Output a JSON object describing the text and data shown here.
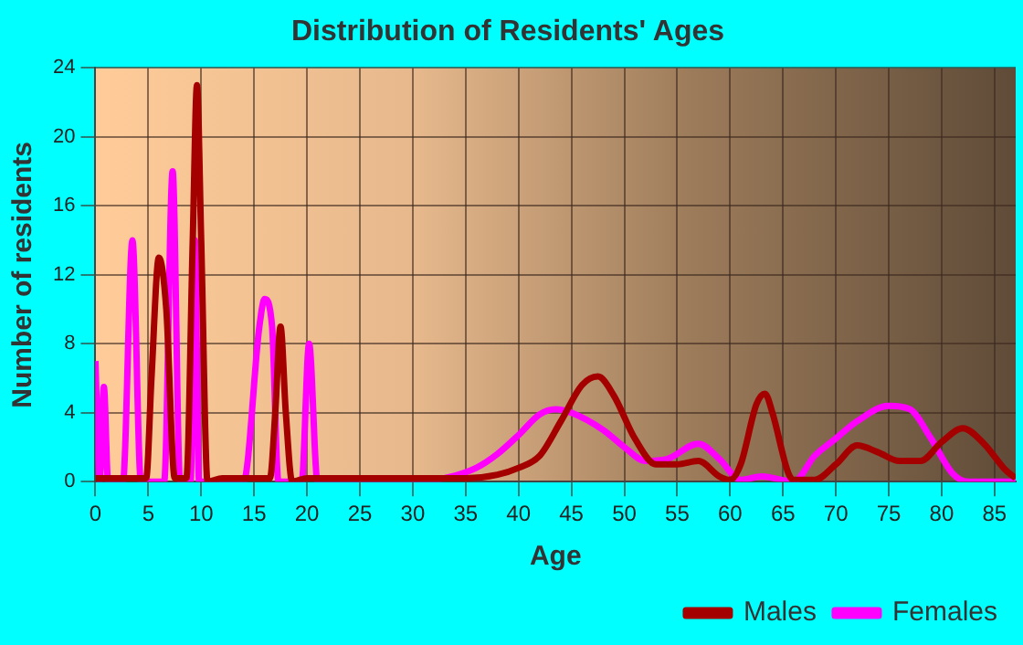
{
  "chart_data": {
    "type": "line",
    "title": "Distribution of Residents' Ages",
    "xlabel": "Age",
    "ylabel": "Number of residents",
    "xlim": [
      0,
      87
    ],
    "xticks": [
      0,
      5,
      10,
      15,
      20,
      25,
      30,
      35,
      40,
      45,
      50,
      55,
      60,
      65,
      70,
      75,
      80,
      85
    ],
    "ylim": [
      0,
      24
    ],
    "yticks": [
      0,
      4,
      8,
      12,
      16,
      20,
      24
    ],
    "grid": true,
    "legend": "bottom",
    "marker": "none",
    "series": [
      {
        "name": "Males",
        "color": "#a50000",
        "x": [
          0,
          4,
          4.8,
          5.3,
          6,
          6.7,
          7.5,
          8.6,
          9.2,
          9.6,
          10,
          10.6,
          12,
          16.5,
          17,
          17.5,
          18,
          18.6,
          20,
          35,
          38,
          40,
          42,
          44,
          46,
          47.5,
          49,
          51,
          53,
          55,
          57,
          59,
          60,
          61,
          62.5,
          63.3,
          64,
          65.5,
          66,
          68,
          70,
          72,
          74,
          76,
          78,
          80,
          82,
          84,
          86,
          87
        ],
        "values": [
          0.2,
          0.2,
          0.2,
          6,
          13,
          10,
          0.2,
          0.2,
          14,
          23,
          14,
          0,
          0.2,
          0.2,
          4,
          9,
          4,
          0,
          0.2,
          0.2,
          0.4,
          0.8,
          1.5,
          3.5,
          5.6,
          6.1,
          5,
          2.5,
          1,
          1,
          1.2,
          0.3,
          0.1,
          1,
          4.5,
          5.1,
          4,
          0.5,
          0.1,
          0.1,
          1,
          2.1,
          1.7,
          1.2,
          1.2,
          2.3,
          3.1,
          2.2,
          0.7,
          0.2
        ]
      },
      {
        "name": "Females",
        "color": "#ff00ff",
        "x": [
          0,
          0.4,
          0.8,
          1.2,
          2.6,
          3.5,
          4.3,
          6.5,
          7.3,
          8,
          9,
          9.4,
          9.8,
          14,
          15.5,
          16,
          16.7,
          17.3,
          19.5,
          20.2,
          21,
          30,
          33,
          36,
          38,
          40,
          42,
          43.5,
          45,
          48,
          50,
          52,
          54,
          57,
          59,
          61,
          63,
          66,
          68,
          70,
          72,
          75,
          77,
          79,
          81,
          82.5,
          87
        ],
        "values": [
          7,
          0,
          5.5,
          0,
          0,
          14,
          0,
          0,
          18,
          0,
          0,
          14,
          0,
          0,
          9,
          10.6,
          9,
          0,
          0,
          8,
          0,
          0,
          0.2,
          0.8,
          1.6,
          2.7,
          3.9,
          4.2,
          4,
          3,
          2,
          1.2,
          1.3,
          2.2,
          1.3,
          0.1,
          0.3,
          0,
          1.5,
          2.5,
          3.5,
          4.4,
          4.2,
          2.5,
          0.5,
          0,
          0
        ]
      }
    ]
  }
}
